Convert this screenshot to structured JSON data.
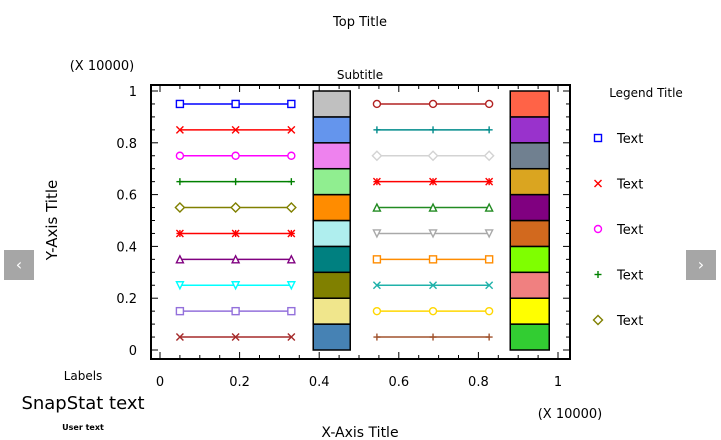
{
  "chart_data": {
    "type": "line",
    "title": "Top Title",
    "subtitle": "Subtitle",
    "xlabel": "X-Axis Title",
    "ylabel": "Y-Axis Title",
    "x_multiplier": "(X 10000)",
    "y_multiplier": "(X 10000)",
    "xlim": [
      0,
      1
    ],
    "ylim": [
      0,
      1
    ],
    "x_ticks": [
      "0",
      "0.2",
      "0.4",
      "0.6",
      "0.8",
      "1"
    ],
    "y_ticks": [
      "0",
      "0.2",
      "0.4",
      "0.6",
      "0.8",
      "1"
    ],
    "grid": false,
    "legend": {
      "title": "Legend Title",
      "placement": "right",
      "items": [
        {
          "label": "Text",
          "marker": "square",
          "color": "#0000FF"
        },
        {
          "label": "Text",
          "marker": "x",
          "color": "#FF0000"
        },
        {
          "label": "Text",
          "marker": "circle",
          "color": "#FF00FF"
        },
        {
          "label": "Text",
          "marker": "plus",
          "color": "#008000"
        },
        {
          "label": "Text",
          "marker": "diamond",
          "color": "#808000"
        }
      ]
    },
    "series": [
      {
        "x": [
          0.05,
          0.19,
          0.33
        ],
        "y": 0.95,
        "marker": "square",
        "color": "#0000FF"
      },
      {
        "x": [
          0.05,
          0.19,
          0.33
        ],
        "y": 0.85,
        "marker": "x",
        "color": "#FF0000"
      },
      {
        "x": [
          0.05,
          0.19,
          0.33
        ],
        "y": 0.75,
        "marker": "circle",
        "color": "#FF00FF"
      },
      {
        "x": [
          0.05,
          0.19,
          0.33
        ],
        "y": 0.65,
        "marker": "plus",
        "color": "#008000"
      },
      {
        "x": [
          0.05,
          0.19,
          0.33
        ],
        "y": 0.55,
        "marker": "diamond",
        "color": "#808000"
      },
      {
        "x": [
          0.05,
          0.19,
          0.33
        ],
        "y": 0.45,
        "marker": "asterisk",
        "color": "#FF0000"
      },
      {
        "x": [
          0.05,
          0.19,
          0.33
        ],
        "y": 0.35,
        "marker": "triangle-up",
        "color": "#800080"
      },
      {
        "x": [
          0.05,
          0.19,
          0.33
        ],
        "y": 0.25,
        "marker": "triangle-down",
        "color": "#00FFFF"
      },
      {
        "x": [
          0.05,
          0.19,
          0.33
        ],
        "y": 0.15,
        "marker": "square",
        "color": "#9370DB"
      },
      {
        "x": [
          0.05,
          0.19,
          0.33
        ],
        "y": 0.05,
        "marker": "x",
        "color": "#A52A2A"
      },
      {
        "x": [
          0.545,
          0.686,
          0.827
        ],
        "y": 0.95,
        "marker": "circle",
        "color": "#B22222"
      },
      {
        "x": [
          0.545,
          0.686,
          0.827
        ],
        "y": 0.85,
        "marker": "plus",
        "color": "#008B8B"
      },
      {
        "x": [
          0.545,
          0.686,
          0.827
        ],
        "y": 0.75,
        "marker": "diamond",
        "color": "#D3D3D3"
      },
      {
        "x": [
          0.545,
          0.686,
          0.827
        ],
        "y": 0.65,
        "marker": "asterisk",
        "color": "#FF0000"
      },
      {
        "x": [
          0.545,
          0.686,
          0.827
        ],
        "y": 0.55,
        "marker": "triangle-up",
        "color": "#228B22"
      },
      {
        "x": [
          0.545,
          0.686,
          0.827
        ],
        "y": 0.45,
        "marker": "triangle-down",
        "color": "#A9A9A9"
      },
      {
        "x": [
          0.545,
          0.686,
          0.827
        ],
        "y": 0.35,
        "marker": "square",
        "color": "#FF8C00"
      },
      {
        "x": [
          0.545,
          0.686,
          0.827
        ],
        "y": 0.25,
        "marker": "x",
        "color": "#20B2AA"
      },
      {
        "x": [
          0.545,
          0.686,
          0.827
        ],
        "y": 0.15,
        "marker": "circle",
        "color": "#FFD700"
      },
      {
        "x": [
          0.545,
          0.686,
          0.827
        ],
        "y": 0.05,
        "marker": "plus",
        "color": "#A0522D"
      }
    ],
    "bar_stacks": [
      {
        "x": [
          0.385,
          0.478
        ],
        "segment_height": 0.1,
        "colors_bottom_to_top": [
          "#4682B4",
          "#F0E68C",
          "#808000",
          "#008080",
          "#AFEEEE",
          "#FF8C00",
          "#90EE90",
          "#EE82EE",
          "#6495ED",
          "#C0C0C0"
        ]
      },
      {
        "x": [
          0.88,
          0.978
        ],
        "segment_height": 0.1,
        "colors_bottom_to_top": [
          "#32CD32",
          "#FFFF00",
          "#F08080",
          "#7FFF00",
          "#D2691E",
          "#800080",
          "#DAA520",
          "#708090",
          "#9932CC",
          "#FF6347"
        ]
      }
    ]
  },
  "labels": {
    "heading": "Labels",
    "snapstat": "SnapStat text",
    "user": "User text"
  },
  "nav": {
    "prev": "‹",
    "next": "›"
  }
}
